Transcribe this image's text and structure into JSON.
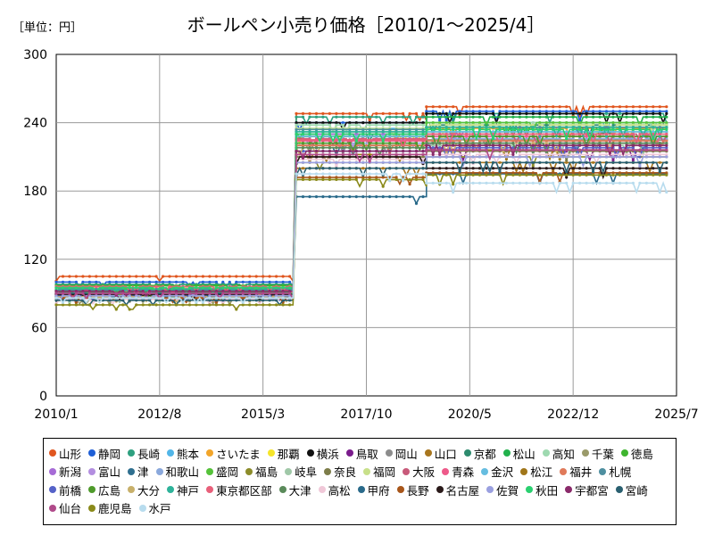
{
  "header": {
    "unit_label": "［単位：円］",
    "title": "ボールペン小売り価格［2010/1～2025/4］"
  },
  "chart_data": {
    "type": "line",
    "title": "ボールペン小売り価格［2010/1～2025/4］",
    "unit": "［単位：円］",
    "xlabel": "",
    "ylabel": "",
    "x_range": [
      "2010/1",
      "2025/7"
    ],
    "x_ticks": [
      "2010/1",
      "2012/8",
      "2015/3",
      "2017/10",
      "2020/5",
      "2022/12",
      "2025/7"
    ],
    "ylim": [
      0,
      300
    ],
    "y_ticks": [
      0,
      60,
      120,
      180,
      240,
      300
    ],
    "grid": true,
    "legend_position": "bottom",
    "series": [
      {
        "name": "山形",
        "color": "#E0561F",
        "before": 105,
        "after": 248,
        "third": 254
      },
      {
        "name": "静岡",
        "color": "#1F5FD6",
        "before": 100,
        "after": 240,
        "third": 250
      },
      {
        "name": "長崎",
        "color": "#2EA07F",
        "before": 98,
        "after": 245,
        "third": 248
      },
      {
        "name": "熊本",
        "color": "#52B6E8",
        "before": 95,
        "after": 235,
        "third": 240
      },
      {
        "name": "さいたま",
        "color": "#F2A52A",
        "before": 92,
        "after": 230,
        "third": 235
      },
      {
        "name": "那覇",
        "color": "#F5E52A",
        "before": 94,
        "after": 228,
        "third": 232
      },
      {
        "name": "横浜",
        "color": "#111111",
        "before": 90,
        "after": 240,
        "third": 248
      },
      {
        "name": "鳥取",
        "color": "#7A1C8C",
        "before": 88,
        "after": 212,
        "third": 215
      },
      {
        "name": "岡山",
        "color": "#8C8C8C",
        "before": 90,
        "after": 220,
        "third": 225
      },
      {
        "name": "山口",
        "color": "#A8761E",
        "before": 95,
        "after": 200,
        "third": 205
      },
      {
        "name": "京都",
        "color": "#2E8B6E",
        "before": 92,
        "after": 230,
        "third": 238
      },
      {
        "name": "松山",
        "color": "#22B14C",
        "before": 93,
        "after": 225,
        "third": 245
      },
      {
        "name": "高知",
        "color": "#9ED9B0",
        "before": 96,
        "after": 238,
        "third": 240
      },
      {
        "name": "千葉",
        "color": "#9A9A6A",
        "before": 85,
        "after": 220,
        "third": 225
      },
      {
        "name": "徳島",
        "color": "#3FB52F",
        "before": 97,
        "after": 228,
        "third": 236
      },
      {
        "name": "新潟",
        "color": "#A66BD6",
        "before": 91,
        "after": 230,
        "third": 232
      },
      {
        "name": "富山",
        "color": "#B38EE0",
        "before": 89,
        "after": 225,
        "third": 228
      },
      {
        "name": "津",
        "color": "#2F6F8F",
        "before": 92,
        "after": 218,
        "third": 222
      },
      {
        "name": "和歌山",
        "color": "#8AA8DC",
        "before": 90,
        "after": 222,
        "third": 226
      },
      {
        "name": "盛岡",
        "color": "#55C23A",
        "before": 94,
        "after": 232,
        "third": 240
      },
      {
        "name": "福島",
        "color": "#8C8C2A",
        "before": 88,
        "after": 205,
        "third": 210
      },
      {
        "name": "岐阜",
        "color": "#A0C8A8",
        "before": 86,
        "after": 215,
        "third": 220
      },
      {
        "name": "奈良",
        "color": "#7D7D4A",
        "before": 87,
        "after": 210,
        "third": 215
      },
      {
        "name": "福岡",
        "color": "#C8E08A",
        "before": 95,
        "after": 235,
        "third": 238
      },
      {
        "name": "大阪",
        "color": "#C85A7A",
        "before": 93,
        "after": 226,
        "third": 230
      },
      {
        "name": "青森",
        "color": "#EE5A8A",
        "before": 91,
        "after": 224,
        "third": 228
      },
      {
        "name": "金沢",
        "color": "#66BDE0",
        "before": 90,
        "after": 228,
        "third": 232
      },
      {
        "name": "松江",
        "color": "#A0761A",
        "before": 89,
        "after": 212,
        "third": 216
      },
      {
        "name": "福井",
        "color": "#E07A5A",
        "before": 92,
        "after": 220,
        "third": 224
      },
      {
        "name": "札幌",
        "color": "#4E8FA0",
        "before": 94,
        "after": 234,
        "third": 236
      },
      {
        "name": "前橋",
        "color": "#5562C8",
        "before": 88,
        "after": 215,
        "third": 218
      },
      {
        "name": "広島",
        "color": "#4E9A2A",
        "before": 90,
        "after": 222,
        "third": 228
      },
      {
        "name": "大分",
        "color": "#C8B06A",
        "before": 87,
        "after": 218,
        "third": 222
      },
      {
        "name": "神戸",
        "color": "#2EB39A",
        "before": 93,
        "after": 232,
        "third": 236
      },
      {
        "name": "東京都区部",
        "color": "#E8607A",
        "before": 96,
        "after": 225,
        "third": 230
      },
      {
        "name": "大津",
        "color": "#5A8A5A",
        "before": 91,
        "after": 218,
        "third": 222
      },
      {
        "name": "高松",
        "color": "#F0C8D8",
        "before": 85,
        "after": 208,
        "third": 212
      },
      {
        "name": "甲府",
        "color": "#2A6A8A",
        "before": 90,
        "after": 175,
        "third": 195
      },
      {
        "name": "長野",
        "color": "#A8561A",
        "before": 86,
        "after": 192,
        "third": 196
      },
      {
        "name": "名古屋",
        "color": "#2A1A1A",
        "before": 89,
        "after": 210,
        "third": 200
      },
      {
        "name": "佐賀",
        "color": "#9AA0E0",
        "before": 88,
        "after": 205,
        "third": 210
      },
      {
        "name": "秋田",
        "color": "#2AD070",
        "before": 95,
        "after": 230,
        "third": 234
      },
      {
        "name": "宇都宮",
        "color": "#8A2A6A",
        "before": 92,
        "after": 215,
        "third": 220
      },
      {
        "name": "宮崎",
        "color": "#2A6070",
        "before": 84,
        "after": 200,
        "third": 205
      },
      {
        "name": "仙台",
        "color": "#B04A8A",
        "before": 90,
        "after": 212,
        "third": 216
      },
      {
        "name": "鹿児島",
        "color": "#8A8A1A",
        "before": 80,
        "after": 190,
        "third": 194
      },
      {
        "name": "水戸",
        "color": "#B8DCEE",
        "before": 86,
        "after": 195,
        "third": 187
      }
    ]
  }
}
